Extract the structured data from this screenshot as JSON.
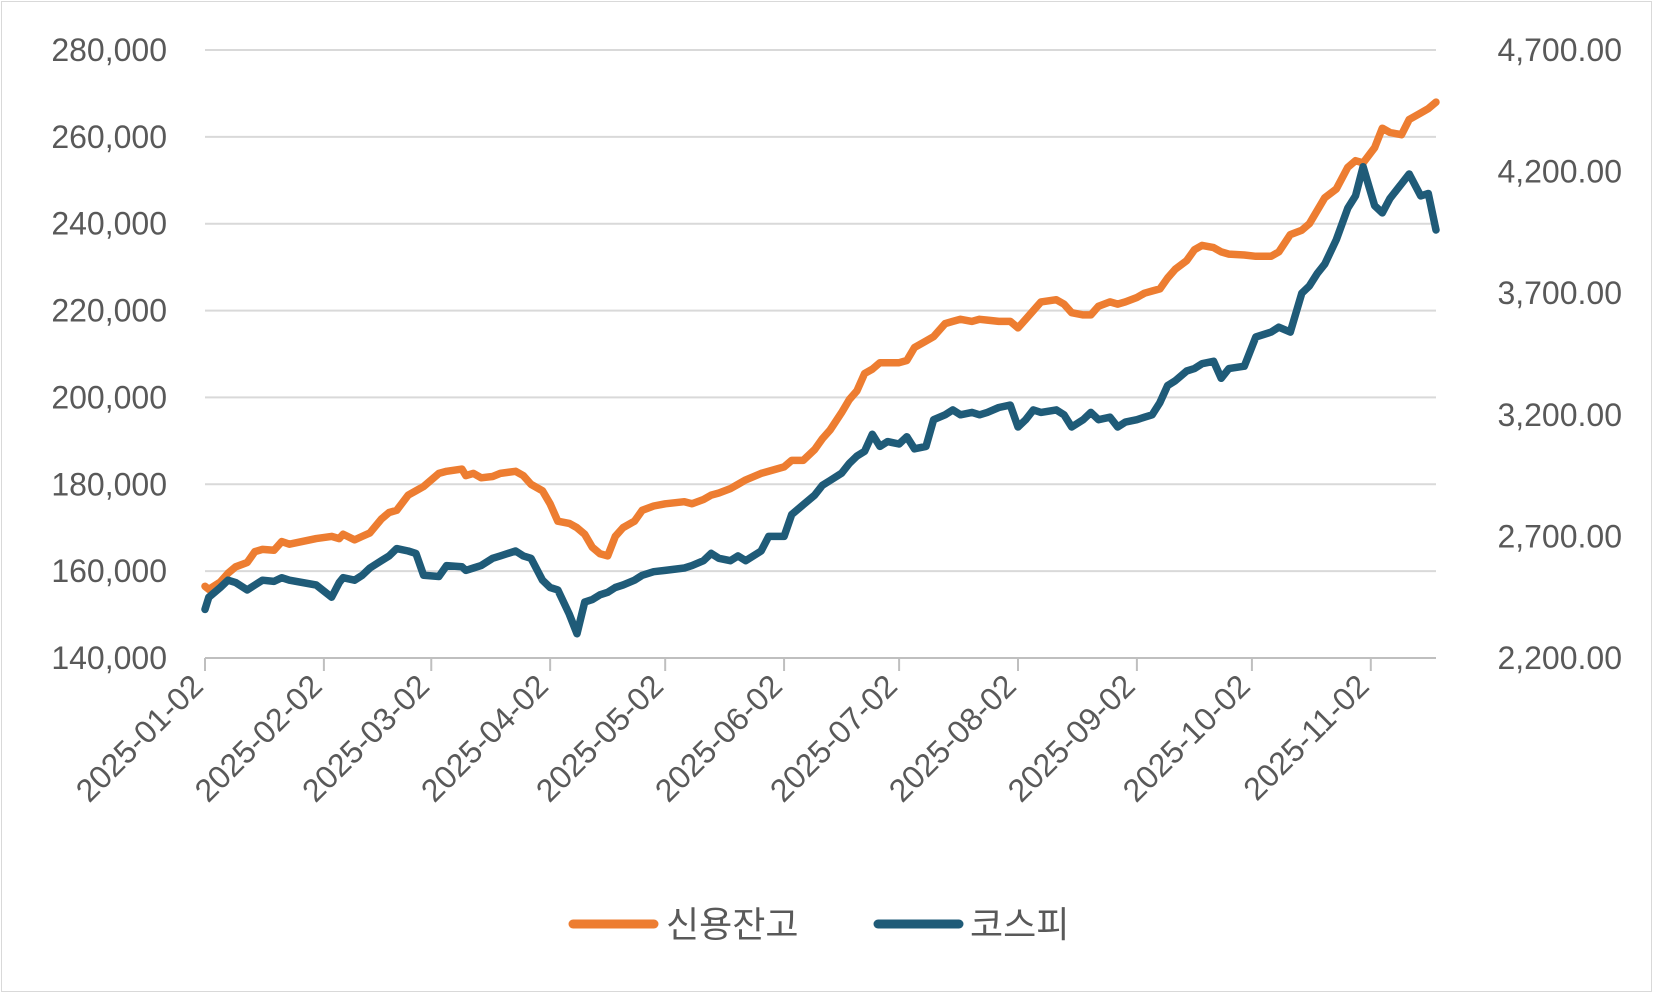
{
  "chart_data": {
    "type": "line",
    "title": "",
    "xlabel": "",
    "ylabel_left": "",
    "ylabel_right": "",
    "grid": true,
    "legend_position": "bottom",
    "x_range": [
      "2025-01-02",
      "2025-11-19"
    ],
    "x_ticks": [
      "2025-01-02",
      "2025-02-02",
      "2025-03-02",
      "2025-04-02",
      "2025-05-02",
      "2025-06-02",
      "2025-07-02",
      "2025-08-02",
      "2025-09-02",
      "2025-10-02",
      "2025-11-02"
    ],
    "y_left": {
      "min": 140000,
      "max": 280000,
      "ticks": [
        "140,000",
        "160,000",
        "180,000",
        "200,000",
        "220,000",
        "240,000",
        "260,000",
        "280,000"
      ]
    },
    "y_right": {
      "min": 2200,
      "max": 4700,
      "ticks": [
        "2,200.00",
        "2,700.00",
        "3,200.00",
        "3,700.00",
        "4,200.00",
        "4,700.00"
      ]
    },
    "series": [
      {
        "name": "신용잔고",
        "axis": "left",
        "color": "#ed7d31",
        "points": [
          [
            "2025-01-02",
            156500
          ],
          [
            "2025-01-03",
            155800
          ],
          [
            "2025-01-06",
            157500
          ],
          [
            "2025-01-08",
            159500
          ],
          [
            "2025-01-10",
            161000
          ],
          [
            "2025-01-13",
            162000
          ],
          [
            "2025-01-15",
            164500
          ],
          [
            "2025-01-17",
            165000
          ],
          [
            "2025-01-20",
            164800
          ],
          [
            "2025-01-22",
            166800
          ],
          [
            "2025-01-24",
            166200
          ],
          [
            "2025-01-31",
            167500
          ],
          [
            "2025-02-04",
            168000
          ],
          [
            "2025-02-06",
            167500
          ],
          [
            "2025-02-07",
            168500
          ],
          [
            "2025-02-10",
            167200
          ],
          [
            "2025-02-12",
            168000
          ],
          [
            "2025-02-14",
            168800
          ],
          [
            "2025-02-17",
            172000
          ],
          [
            "2025-02-19",
            173500
          ],
          [
            "2025-02-21",
            174000
          ],
          [
            "2025-02-24",
            177500
          ],
          [
            "2025-02-26",
            178500
          ],
          [
            "2025-02-28",
            179500
          ],
          [
            "2025-03-04",
            182500
          ],
          [
            "2025-03-06",
            183000
          ],
          [
            "2025-03-10",
            183500
          ],
          [
            "2025-03-11",
            182000
          ],
          [
            "2025-03-13",
            182500
          ],
          [
            "2025-03-15",
            181500
          ],
          [
            "2025-03-18",
            181800
          ],
          [
            "2025-03-20",
            182500
          ],
          [
            "2025-03-24",
            183000
          ],
          [
            "2025-03-26",
            182000
          ],
          [
            "2025-03-28",
            180000
          ],
          [
            "2025-03-31",
            178500
          ],
          [
            "2025-04-02",
            175500
          ],
          [
            "2025-04-04",
            171500
          ],
          [
            "2025-04-07",
            171000
          ],
          [
            "2025-04-09",
            170000
          ],
          [
            "2025-04-11",
            168500
          ],
          [
            "2025-04-13",
            165500
          ],
          [
            "2025-04-15",
            164000
          ],
          [
            "2025-04-17",
            163500
          ],
          [
            "2025-04-19",
            168000
          ],
          [
            "2025-04-21",
            170000
          ],
          [
            "2025-04-24",
            171500
          ],
          [
            "2025-04-26",
            174000
          ],
          [
            "2025-04-29",
            175000
          ],
          [
            "2025-05-02",
            175500
          ],
          [
            "2025-05-07",
            176000
          ],
          [
            "2025-05-09",
            175500
          ],
          [
            "2025-05-12",
            176500
          ],
          [
            "2025-05-14",
            177500
          ],
          [
            "2025-05-16",
            178000
          ],
          [
            "2025-05-19",
            179000
          ],
          [
            "2025-05-21",
            180000
          ],
          [
            "2025-05-23",
            181000
          ],
          [
            "2025-05-27",
            182500
          ],
          [
            "2025-05-29",
            183000
          ],
          [
            "2025-06-02",
            184000
          ],
          [
            "2025-06-04",
            185500
          ],
          [
            "2025-06-07",
            185500
          ],
          [
            "2025-06-10",
            188000
          ],
          [
            "2025-06-12",
            190500
          ],
          [
            "2025-06-14",
            192500
          ],
          [
            "2025-06-17",
            196500
          ],
          [
            "2025-06-19",
            199500
          ],
          [
            "2025-06-21",
            201500
          ],
          [
            "2025-06-23",
            205500
          ],
          [
            "2025-06-25",
            206500
          ],
          [
            "2025-06-27",
            208000
          ],
          [
            "2025-06-29",
            208000
          ],
          [
            "2025-07-02",
            208000
          ],
          [
            "2025-07-04",
            208500
          ],
          [
            "2025-07-06",
            211500
          ],
          [
            "2025-07-09",
            213000
          ],
          [
            "2025-07-11",
            214000
          ],
          [
            "2025-07-14",
            217000
          ],
          [
            "2025-07-16",
            217500
          ],
          [
            "2025-07-18",
            218000
          ],
          [
            "2025-07-21",
            217500
          ],
          [
            "2025-07-23",
            218000
          ],
          [
            "2025-07-25",
            217800
          ],
          [
            "2025-07-28",
            217500
          ],
          [
            "2025-07-31",
            217500
          ],
          [
            "2025-08-02",
            216000
          ],
          [
            "2025-08-04",
            218000
          ],
          [
            "2025-08-06",
            220000
          ],
          [
            "2025-08-08",
            222000
          ],
          [
            "2025-08-12",
            222500
          ],
          [
            "2025-08-14",
            221500
          ],
          [
            "2025-08-16",
            219500
          ],
          [
            "2025-08-19",
            219000
          ],
          [
            "2025-08-21",
            219000
          ],
          [
            "2025-08-23",
            221000
          ],
          [
            "2025-08-26",
            222000
          ],
          [
            "2025-08-28",
            221500
          ],
          [
            "2025-08-30",
            222000
          ],
          [
            "2025-09-02",
            223000
          ],
          [
            "2025-09-04",
            224000
          ],
          [
            "2025-09-06",
            224500
          ],
          [
            "2025-09-08",
            225000
          ],
          [
            "2025-09-10",
            227500
          ],
          [
            "2025-09-12",
            229500
          ],
          [
            "2025-09-15",
            231500
          ],
          [
            "2025-09-17",
            234000
          ],
          [
            "2025-09-19",
            235000
          ],
          [
            "2025-09-22",
            234500
          ],
          [
            "2025-09-24",
            233500
          ],
          [
            "2025-09-26",
            233000
          ],
          [
            "2025-09-30",
            232800
          ],
          [
            "2025-10-03",
            232500
          ],
          [
            "2025-10-07",
            232500
          ],
          [
            "2025-10-09",
            233500
          ],
          [
            "2025-10-12",
            237500
          ],
          [
            "2025-10-15",
            238500
          ],
          [
            "2025-10-17",
            240000
          ],
          [
            "2025-10-19",
            243000
          ],
          [
            "2025-10-21",
            246000
          ],
          [
            "2025-10-24",
            248000
          ],
          [
            "2025-10-27",
            253000
          ],
          [
            "2025-10-29",
            254500
          ],
          [
            "2025-10-31",
            254000
          ],
          [
            "2025-11-03",
            257500
          ],
          [
            "2025-11-05",
            262000
          ],
          [
            "2025-11-07",
            261000
          ],
          [
            "2025-11-10",
            260500
          ],
          [
            "2025-11-12",
            264000
          ],
          [
            "2025-11-15",
            265500
          ],
          [
            "2025-11-17",
            266500
          ],
          [
            "2025-11-19",
            268000
          ]
        ]
      },
      {
        "name": "코스피",
        "axis": "right",
        "color": "#1f5b78",
        "points": [
          [
            "2025-01-02",
            2400
          ],
          [
            "2025-01-03",
            2450
          ],
          [
            "2025-01-06",
            2490
          ],
          [
            "2025-01-08",
            2520
          ],
          [
            "2025-01-10",
            2510
          ],
          [
            "2025-01-13",
            2480
          ],
          [
            "2025-01-15",
            2500
          ],
          [
            "2025-01-17",
            2520
          ],
          [
            "2025-01-20",
            2515
          ],
          [
            "2025-01-22",
            2530
          ],
          [
            "2025-01-24",
            2520
          ],
          [
            "2025-01-31",
            2500
          ],
          [
            "2025-02-04",
            2450
          ],
          [
            "2025-02-06",
            2510
          ],
          [
            "2025-02-07",
            2530
          ],
          [
            "2025-02-10",
            2520
          ],
          [
            "2025-02-12",
            2540
          ],
          [
            "2025-02-14",
            2570
          ],
          [
            "2025-02-17",
            2600
          ],
          [
            "2025-02-19",
            2620
          ],
          [
            "2025-02-21",
            2650
          ],
          [
            "2025-02-24",
            2640
          ],
          [
            "2025-02-26",
            2630
          ],
          [
            "2025-02-28",
            2540
          ],
          [
            "2025-03-04",
            2535
          ],
          [
            "2025-03-06",
            2580
          ],
          [
            "2025-03-10",
            2575
          ],
          [
            "2025-03-11",
            2560
          ],
          [
            "2025-03-13",
            2570
          ],
          [
            "2025-03-15",
            2580
          ],
          [
            "2025-03-18",
            2610
          ],
          [
            "2025-03-20",
            2620
          ],
          [
            "2025-03-24",
            2640
          ],
          [
            "2025-03-26",
            2620
          ],
          [
            "2025-03-28",
            2610
          ],
          [
            "2025-03-31",
            2520
          ],
          [
            "2025-04-02",
            2490
          ],
          [
            "2025-04-04",
            2480
          ],
          [
            "2025-04-07",
            2380
          ],
          [
            "2025-04-09",
            2300
          ],
          [
            "2025-04-11",
            2430
          ],
          [
            "2025-04-13",
            2440
          ],
          [
            "2025-04-15",
            2460
          ],
          [
            "2025-04-17",
            2470
          ],
          [
            "2025-04-19",
            2490
          ],
          [
            "2025-04-21",
            2500
          ],
          [
            "2025-04-24",
            2520
          ],
          [
            "2025-04-26",
            2540
          ],
          [
            "2025-04-29",
            2555
          ],
          [
            "2025-05-02",
            2560
          ],
          [
            "2025-05-07",
            2570
          ],
          [
            "2025-05-09",
            2580
          ],
          [
            "2025-05-12",
            2600
          ],
          [
            "2025-05-14",
            2630
          ],
          [
            "2025-05-16",
            2610
          ],
          [
            "2025-05-19",
            2600
          ],
          [
            "2025-05-21",
            2620
          ],
          [
            "2025-05-23",
            2600
          ],
          [
            "2025-05-27",
            2640
          ],
          [
            "2025-05-29",
            2700
          ],
          [
            "2025-06-02",
            2700
          ],
          [
            "2025-06-04",
            2790
          ],
          [
            "2025-06-07",
            2830
          ],
          [
            "2025-06-10",
            2870
          ],
          [
            "2025-06-12",
            2910
          ],
          [
            "2025-06-14",
            2930
          ],
          [
            "2025-06-17",
            2960
          ],
          [
            "2025-06-19",
            3000
          ],
          [
            "2025-06-21",
            3030
          ],
          [
            "2025-06-23",
            3050
          ],
          [
            "2025-06-25",
            3120
          ],
          [
            "2025-06-27",
            3070
          ],
          [
            "2025-06-29",
            3090
          ],
          [
            "2025-07-02",
            3080
          ],
          [
            "2025-07-04",
            3110
          ],
          [
            "2025-07-06",
            3060
          ],
          [
            "2025-07-09",
            3070
          ],
          [
            "2025-07-11",
            3180
          ],
          [
            "2025-07-14",
            3200
          ],
          [
            "2025-07-16",
            3220
          ],
          [
            "2025-07-18",
            3200
          ],
          [
            "2025-07-21",
            3210
          ],
          [
            "2025-07-23",
            3200
          ],
          [
            "2025-07-25",
            3210
          ],
          [
            "2025-07-28",
            3230
          ],
          [
            "2025-07-31",
            3240
          ],
          [
            "2025-08-02",
            3150
          ],
          [
            "2025-08-04",
            3180
          ],
          [
            "2025-08-06",
            3220
          ],
          [
            "2025-08-08",
            3210
          ],
          [
            "2025-08-12",
            3220
          ],
          [
            "2025-08-14",
            3200
          ],
          [
            "2025-08-16",
            3150
          ],
          [
            "2025-08-19",
            3180
          ],
          [
            "2025-08-21",
            3210
          ],
          [
            "2025-08-23",
            3180
          ],
          [
            "2025-08-26",
            3190
          ],
          [
            "2025-08-28",
            3150
          ],
          [
            "2025-08-30",
            3170
          ],
          [
            "2025-09-02",
            3180
          ],
          [
            "2025-09-04",
            3190
          ],
          [
            "2025-09-06",
            3200
          ],
          [
            "2025-09-08",
            3250
          ],
          [
            "2025-09-10",
            3320
          ],
          [
            "2025-09-12",
            3340
          ],
          [
            "2025-09-15",
            3380
          ],
          [
            "2025-09-17",
            3390
          ],
          [
            "2025-09-19",
            3410
          ],
          [
            "2025-09-22",
            3420
          ],
          [
            "2025-09-24",
            3350
          ],
          [
            "2025-09-26",
            3390
          ],
          [
            "2025-09-30",
            3400
          ],
          [
            "2025-10-03",
            3520
          ],
          [
            "2025-10-07",
            3540
          ],
          [
            "2025-10-09",
            3560
          ],
          [
            "2025-10-12",
            3540
          ],
          [
            "2025-10-15",
            3700
          ],
          [
            "2025-10-17",
            3730
          ],
          [
            "2025-10-19",
            3780
          ],
          [
            "2025-10-21",
            3820
          ],
          [
            "2025-10-24",
            3920
          ],
          [
            "2025-10-27",
            4050
          ],
          [
            "2025-10-29",
            4100
          ],
          [
            "2025-10-31",
            4220
          ],
          [
            "2025-11-03",
            4060
          ],
          [
            "2025-11-05",
            4030
          ],
          [
            "2025-11-07",
            4090
          ],
          [
            "2025-11-10",
            4150
          ],
          [
            "2025-11-12",
            4190
          ],
          [
            "2025-11-15",
            4100
          ],
          [
            "2025-11-17",
            4110
          ],
          [
            "2025-11-19",
            3960
          ]
        ]
      }
    ]
  }
}
